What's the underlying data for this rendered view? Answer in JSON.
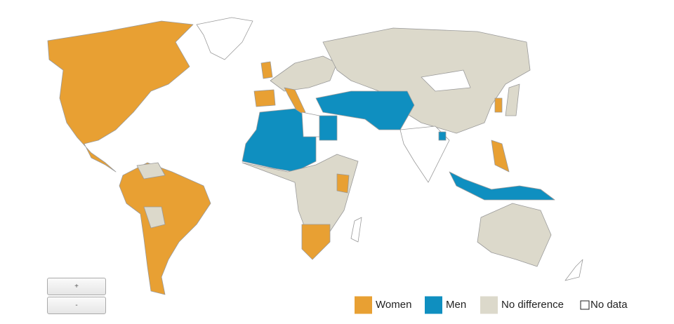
{
  "legend": [
    {
      "name": "Women",
      "color": "#e8a033"
    },
    {
      "name": "Men",
      "color": "#0f8fc0"
    },
    {
      "name": "No difference",
      "color": "#dcd9cb"
    },
    {
      "name": "No data",
      "color": "#ffffff"
    }
  ],
  "zoom": {
    "in": "+",
    "out": "-"
  }
}
